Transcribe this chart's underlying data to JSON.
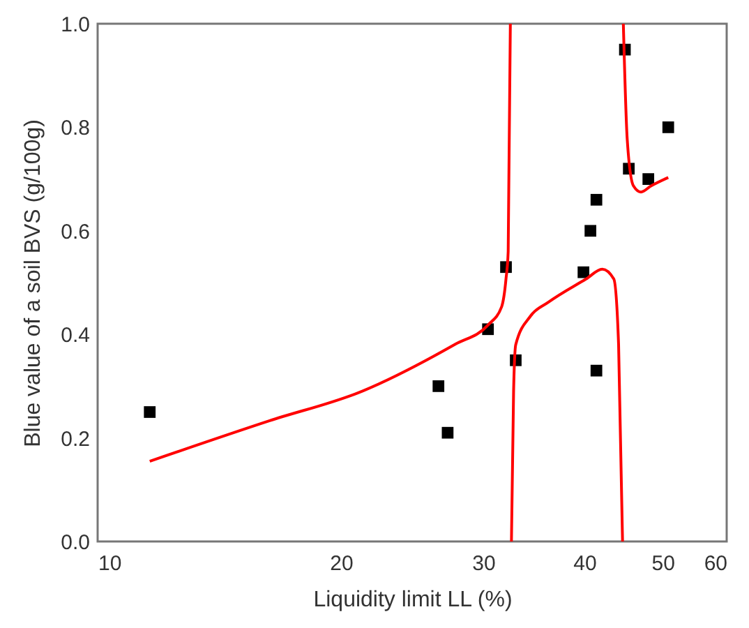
{
  "chart_data": {
    "type": "scatter",
    "xlabel": "Liquidity limit LL (%)",
    "ylabel": "Blue value of a soil BVS (g/100g)",
    "log": "x",
    "grid": false,
    "xlim": [
      10,
      60
    ],
    "xticks": [
      10,
      20,
      30,
      40,
      50,
      60
    ],
    "ylim": [
      0,
      1
    ],
    "yticks": [
      {
        "value": 0,
        "label": "0.0"
      },
      {
        "value": 0.2,
        "label": "0.2"
      },
      {
        "value": 0.4,
        "label": "0.4"
      },
      {
        "value": 0.6,
        "label": "0.6"
      },
      {
        "value": 0.8,
        "label": "0.8"
      },
      {
        "value": 1,
        "label": "1.0"
      }
    ],
    "series": [
      {
        "marker": "square",
        "color": "#000000",
        "x": [
          11.6,
          26.4,
          27.1,
          30.4,
          32.0,
          32.9,
          39.9,
          40.7,
          41.4,
          41.4,
          44.9,
          45.4,
          48.0,
          50.8
        ],
        "values": [
          0.25,
          0.3,
          0.21,
          0.41,
          0.53,
          0.35,
          0.52,
          0.6,
          0.66,
          0.33,
          0.95,
          0.72,
          0.7,
          0.8
        ]
      },
      {
        "type": "line",
        "marker": "none",
        "line_style": "solid",
        "color": "#ff0000",
        "x": [
          11.6,
          16.3,
          21.3,
          27.7,
          30.4,
          31.6,
          32.0,
          32.2,
          32.4,
          32.45,
          32.5,
          32.7,
          32.9,
          34.3,
          36.1,
          40.2,
          42.1,
          43.5,
          44.1,
          44.6,
          44.65,
          44.7,
          45.2,
          46.0,
          47.0,
          48.4,
          50.8
        ],
        "values": [
          0.155,
          0.233,
          0.291,
          0.381,
          0.418,
          0.453,
          0.507,
          0.56,
          1.0,
          null,
          0,
          0.29,
          0.38,
          0.435,
          0.462,
          0.507,
          0.526,
          0.507,
          0.38,
          0,
          null,
          1.0,
          0.776,
          0.687,
          0.675,
          0.687,
          0.703
        ]
      }
    ]
  }
}
